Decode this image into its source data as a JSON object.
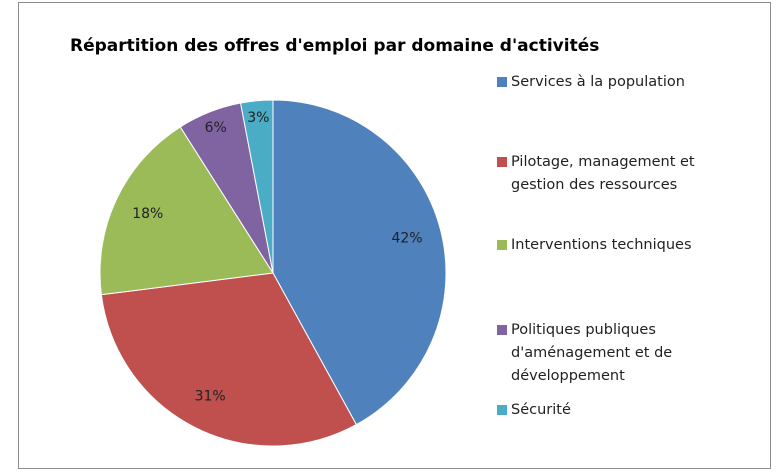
{
  "chart_data": {
    "type": "pie",
    "title": "Répartition des offres d'emploi par domaine d'activités",
    "categories": [
      "Services à la population",
      "Pilotage, management et gestion des ressources",
      "Interventions techniques",
      "Politiques publiques d'aménagement et de développement",
      "Sécurité"
    ],
    "values": [
      42,
      31,
      18,
      6,
      3
    ],
    "value_labels": [
      "42%",
      "31%",
      "18%",
      "6%",
      "3%"
    ],
    "colors": [
      "#4f81bd",
      "#c0504d",
      "#9bbb59",
      "#8064a2",
      "#4bacc6"
    ],
    "legend": "right"
  }
}
